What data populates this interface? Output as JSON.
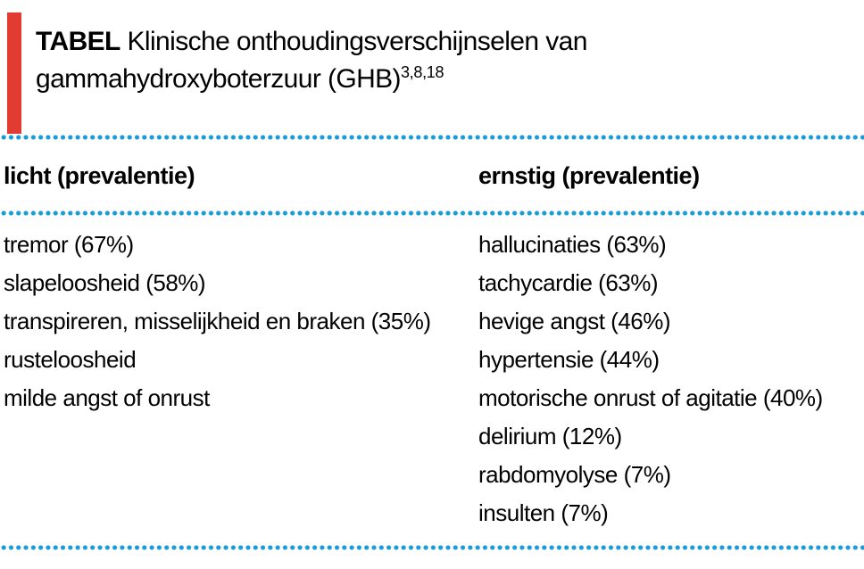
{
  "table": {
    "kicker": "TABEL",
    "title_rest": "Klinische onthoudingsverschijnselen van",
    "title_line2": "gammahydroxyboterzuur (GHB)",
    "title_superscript": "3,8,18",
    "columns": [
      {
        "header": "licht (prevalentie)",
        "items": [
          "tremor (67%)",
          "slapeloosheid (58%)",
          "transpireren, misselijkheid en braken (35%)",
          "rusteloosheid",
          "milde angst of onrust"
        ]
      },
      {
        "header": "ernstig (prevalentie)",
        "items": [
          "hallucinaties (63%)",
          "tachycardie (63%)",
          "hevige angst (46%)",
          "hypertensie (44%)",
          "motorische onrust of agitatie (40%)",
          "delirium (12%)",
          "rabdomyolyse (7%)",
          "insulten (7%)"
        ]
      }
    ]
  },
  "colors": {
    "accent_red": "#e23b32",
    "rule_blue": "#1a9cd8",
    "text": "#000000",
    "background": "#ffffff"
  }
}
